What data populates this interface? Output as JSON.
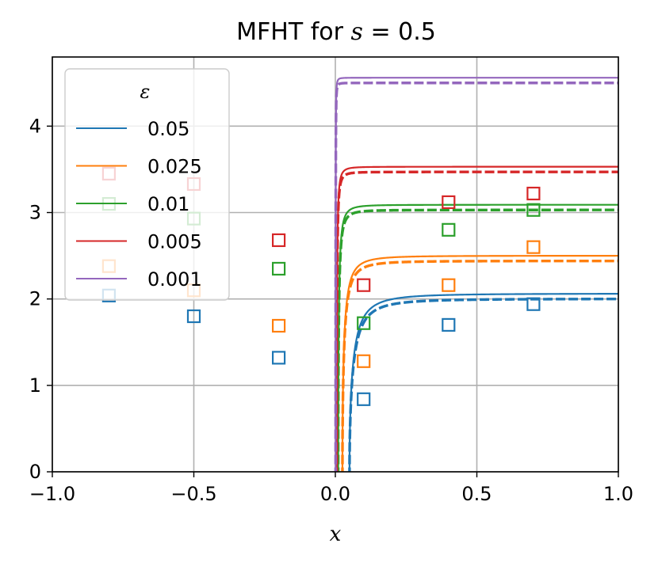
{
  "chart_data": {
    "type": "line",
    "title_prefix": "MFHT for ",
    "title_var": "s",
    "title_eq": " = 0.5",
    "xlabel": "x",
    "ylabel": "",
    "xlim": [
      -1.0,
      1.0
    ],
    "ylim": [
      0,
      4.8
    ],
    "xticks": [
      -1.0,
      -0.5,
      0.0,
      0.5,
      1.0
    ],
    "xtick_labels": [
      "−1.0",
      "−0.5",
      "0.0",
      "0.5",
      "1.0"
    ],
    "yticks": [
      0,
      1,
      2,
      3,
      4
    ],
    "ytick_labels": [
      "0",
      "1",
      "2",
      "3",
      "4"
    ],
    "grid": true,
    "legend_title": "ε",
    "legend_position": "upper-left",
    "series": [
      {
        "name": "0.05",
        "color": "#1f77b4",
        "ymax": 2.06,
        "zero": 0.05,
        "markers": {
          "x": [
            -0.8,
            -0.5,
            -0.2,
            0.1,
            0.4,
            0.7
          ],
          "y": [
            2.04,
            1.8,
            1.32,
            0.84,
            1.7,
            1.94
          ]
        }
      },
      {
        "name": "0.025",
        "color": "#ff7f0e",
        "ymax": 2.5,
        "zero": 0.025,
        "markers": {
          "x": [
            -0.8,
            -0.5,
            -0.2,
            0.1,
            0.4,
            0.7
          ],
          "y": [
            2.38,
            2.1,
            1.69,
            1.28,
            2.16,
            2.6
          ]
        }
      },
      {
        "name": "0.01",
        "color": "#2ca02c",
        "ymax": 3.09,
        "zero": 0.01,
        "markers": {
          "x": [
            -0.8,
            -0.5,
            -0.2,
            0.1,
            0.4,
            0.7
          ],
          "y": [
            3.1,
            2.93,
            2.35,
            1.72,
            2.8,
            3.03
          ]
        }
      },
      {
        "name": "0.005",
        "color": "#d62728",
        "ymax": 3.53,
        "zero": 0.005,
        "markers": {
          "x": [
            -0.8,
            -0.5,
            -0.2,
            0.1,
            0.4,
            0.7
          ],
          "y": [
            3.45,
            3.33,
            2.68,
            2.16,
            3.12,
            3.22
          ]
        }
      },
      {
        "name": "0.001",
        "color": "#9467bd",
        "ymax": 4.56,
        "zero": 0.001,
        "markers": {
          "x": [],
          "y": []
        }
      }
    ]
  }
}
